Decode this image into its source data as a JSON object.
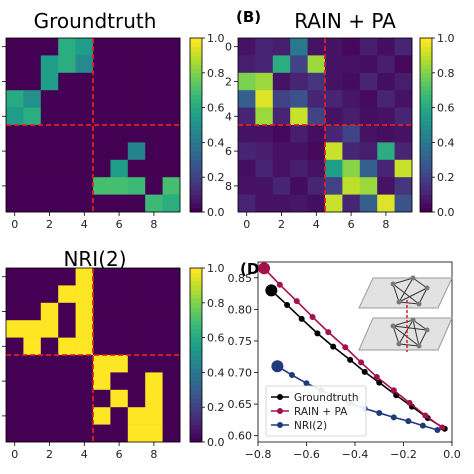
{
  "panels": [
    {
      "label": "",
      "title": "Groundtruth"
    },
    {
      "label": "(B)",
      "title": "RAIN + PA"
    },
    {
      "label": "",
      "title": "NRI(2)"
    },
    {
      "label": "(D)",
      "title": ""
    }
  ],
  "chart_data": [
    {
      "type": "heatmap",
      "title": "Groundtruth",
      "size": 10,
      "clim": [
        0,
        1
      ],
      "colorbar_ticks": [
        "0.0",
        "0.2",
        "0.4",
        "0.6",
        "0.8",
        "1.0"
      ],
      "x_ticks": [
        "0",
        "2",
        "4",
        "6",
        "8"
      ],
      "y_ticks": [],
      "divider": 4.5,
      "values": [
        [
          0,
          0,
          0,
          0.62,
          0.55,
          0,
          0,
          0,
          0,
          0
        ],
        [
          0,
          0,
          0.55,
          0.62,
          0.48,
          0,
          0,
          0,
          0,
          0
        ],
        [
          0,
          0,
          0.55,
          0,
          0,
          0,
          0,
          0,
          0,
          0
        ],
        [
          0.6,
          0.5,
          0,
          0,
          0,
          0,
          0,
          0,
          0,
          0
        ],
        [
          0.55,
          0.62,
          0,
          0,
          0,
          0,
          0,
          0,
          0,
          0
        ],
        [
          0,
          0,
          0,
          0,
          0,
          0,
          0,
          0,
          0,
          0
        ],
        [
          0,
          0,
          0,
          0,
          0,
          0,
          0,
          0.45,
          0,
          0
        ],
        [
          0,
          0,
          0,
          0,
          0,
          0,
          0.55,
          0,
          0,
          0
        ],
        [
          0,
          0,
          0,
          0,
          0,
          0.7,
          0.7,
          0.68,
          0,
          0.7
        ],
        [
          0,
          0,
          0,
          0,
          0,
          0,
          0,
          0,
          0.68,
          0.62
        ]
      ]
    },
    {
      "type": "heatmap",
      "title": "RAIN + PA",
      "size": 10,
      "clim": [
        0,
        1
      ],
      "colorbar_ticks": [
        "0.0",
        "0.2",
        "0.4",
        "0.6",
        "0.8",
        "1.0"
      ],
      "x_ticks": [
        "0",
        "2",
        "4",
        "6",
        "8"
      ],
      "y_ticks": [
        "0",
        "2",
        "4",
        "6",
        "8"
      ],
      "divider": 4.5,
      "values": [
        [
          0.05,
          0.1,
          0.08,
          0.4,
          0.05,
          0.05,
          0.02,
          0.08,
          0.04,
          0.1
        ],
        [
          0.08,
          0.1,
          0.62,
          0.2,
          0.85,
          0.05,
          0.05,
          0.04,
          0.08,
          0.02
        ],
        [
          0.8,
          0.85,
          0.05,
          0.1,
          0.15,
          0.05,
          0.03,
          0.1,
          0.04,
          0.08
        ],
        [
          0.3,
          0.95,
          0.2,
          0.25,
          0.1,
          0.1,
          0.06,
          0.03,
          0.1,
          0.05
        ],
        [
          0.1,
          0.85,
          0.1,
          0.92,
          0.2,
          0.05,
          0.08,
          0.04,
          0.05,
          0.1
        ],
        [
          0.05,
          0.05,
          0.02,
          0.08,
          0.04,
          0.1,
          0.2,
          0.05,
          0.04,
          0.05
        ],
        [
          0.1,
          0.08,
          0.05,
          0.05,
          0.02,
          0.92,
          0.1,
          0.08,
          0.62,
          0.1
        ],
        [
          0.04,
          0.1,
          0.05,
          0.08,
          0.05,
          0.55,
          0.82,
          0.3,
          0.1,
          0.92
        ],
        [
          0.05,
          0.05,
          0.1,
          0.03,
          0.1,
          0.2,
          0.9,
          0.85,
          0.05,
          0.15
        ],
        [
          0.1,
          0.05,
          0.05,
          0.06,
          0.04,
          0.92,
          0.1,
          0.3,
          0.95,
          0.25
        ]
      ]
    },
    {
      "type": "heatmap",
      "title": "NRI(2)",
      "size": 10,
      "clim": [
        0,
        1
      ],
      "colorbar_ticks": [
        "0.0",
        "0.2",
        "0.4",
        "0.6",
        "0.8",
        "1.0"
      ],
      "x_ticks": [
        "0",
        "2",
        "4",
        "6",
        "8"
      ],
      "y_ticks": [],
      "divider": 4.5,
      "values": [
        [
          0,
          0,
          0,
          0,
          1,
          0,
          0,
          0,
          0,
          0
        ],
        [
          0,
          0,
          0,
          1,
          1,
          0,
          0,
          0,
          0,
          0
        ],
        [
          0,
          0,
          1,
          0,
          1,
          0,
          0,
          0,
          0,
          0
        ],
        [
          1,
          1,
          1,
          0,
          1,
          0,
          0,
          0,
          0,
          0
        ],
        [
          0,
          1,
          0,
          1,
          1,
          0,
          0,
          0,
          0,
          0
        ],
        [
          0,
          0,
          0,
          0,
          0,
          1,
          1,
          0,
          0,
          0
        ],
        [
          0,
          0,
          0,
          0,
          0,
          1,
          0,
          0,
          1,
          0
        ],
        [
          0,
          0,
          0,
          0,
          0,
          0,
          1,
          0,
          1,
          0
        ],
        [
          0,
          0,
          0,
          0,
          0,
          1,
          0,
          1,
          1,
          0
        ],
        [
          0,
          0,
          0,
          0,
          0,
          0,
          0,
          1,
          1,
          0
        ]
      ]
    },
    {
      "type": "line",
      "title": "",
      "xlim": [
        -0.8,
        0.0
      ],
      "ylim": [
        0.59,
        0.875
      ],
      "x_ticks": [
        -0.8,
        -0.6,
        -0.4,
        -0.2,
        0.0
      ],
      "x_tick_labels": [
        "−0.8",
        "−0.6",
        "−0.4",
        "−0.2",
        "0.0"
      ],
      "y_ticks": [
        0.6,
        0.65,
        0.7,
        0.75,
        0.8,
        0.85
      ],
      "y_tick_labels": [
        "0.60",
        "0.65",
        "0.70",
        "0.75",
        "0.80",
        "0.85"
      ],
      "legend_position": "lower-left",
      "series": [
        {
          "name": "Groundtruth",
          "color": "#000000",
          "x": [
            -0.745,
            -0.68,
            -0.62,
            -0.555,
            -0.49,
            -0.42,
            -0.36,
            -0.3,
            -0.23,
            -0.165,
            -0.1,
            -0.03
          ],
          "y": [
            0.83,
            0.807,
            0.785,
            0.762,
            0.741,
            0.72,
            0.701,
            0.684,
            0.664,
            0.646,
            0.628,
            0.611
          ]
        },
        {
          "name": "RAIN + PA",
          "color": "#a3104a",
          "x": [
            -0.775,
            -0.71,
            -0.64,
            -0.575,
            -0.51,
            -0.44,
            -0.375,
            -0.31,
            -0.24,
            -0.175,
            -0.11,
            -0.04
          ],
          "y": [
            0.865,
            0.839,
            0.813,
            0.788,
            0.764,
            0.74,
            0.716,
            0.693,
            0.672,
            0.652,
            0.632,
            0.613
          ]
        },
        {
          "name": "NRI(2)",
          "color": "#1f3a7a",
          "x": [
            -0.72,
            -0.66,
            -0.6,
            -0.54,
            -0.48,
            -0.42,
            -0.36,
            -0.3,
            -0.24,
            -0.18,
            -0.12,
            -0.06
          ],
          "y": [
            0.71,
            0.696,
            0.683,
            0.672,
            0.661,
            0.652,
            0.643,
            0.636,
            0.629,
            0.623,
            0.616,
            0.609
          ]
        }
      ]
    }
  ]
}
